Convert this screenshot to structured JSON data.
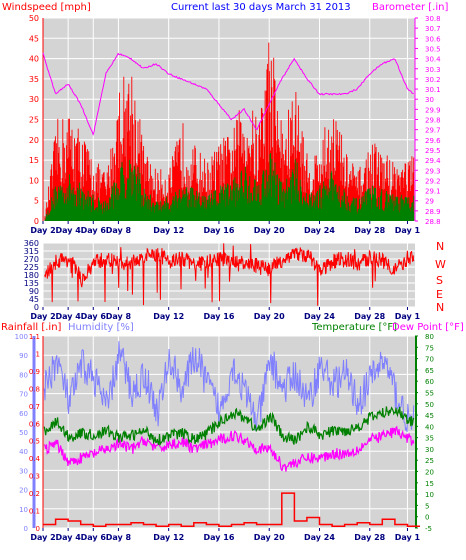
{
  "title": "Current last 30 days March 31 2013",
  "colors": {
    "panel_bg": "#d4d4d4",
    "grid": "#ffffff",
    "wind_speed": "#ff0000",
    "wind_avg": "#008000",
    "barometer": "#ff00ff",
    "wind_dir": "#ff0000",
    "rainfall": "#ff0000",
    "humidity": "#8080ff",
    "temperature": "#008000",
    "dew_point": "#ff00ff",
    "title": "#0000ff",
    "axis_text": "#000080"
  },
  "chart_data": [
    {
      "type": "line",
      "panel": "wind",
      "ylabel_left": "Windspeed [mph]",
      "ylabel_right": "Barometer [.in]",
      "left_ticks": [
        0,
        5,
        10,
        15,
        20,
        25,
        30,
        35,
        40,
        45,
        50
      ],
      "ylim_left": [
        0,
        50
      ],
      "right_ticks": [
        "28.8",
        "28.9",
        "29",
        "29.1",
        "29.2",
        "29.3",
        "29.4",
        "29.5",
        "29.6",
        "29.7",
        "29.8",
        "29.9",
        "30",
        "30.1",
        "30.2",
        "30.3",
        "30.4",
        "30.5",
        "30.6",
        "30.7",
        "30.8"
      ],
      "ylim_right": [
        28.8,
        30.8
      ],
      "x_ticks": [
        "Day 2",
        "Day 4",
        "Day 6",
        "Day 8",
        "Day 12",
        "Day 16",
        "Day 20",
        "Day 24",
        "Day 28",
        "Day 1"
      ],
      "x_tick_days": [
        0,
        2,
        4,
        6,
        10,
        14,
        18,
        22,
        26,
        29
      ],
      "xlim": [
        0,
        29.6
      ],
      "series": [
        {
          "key": "wind_gust",
          "color": "#ff0000",
          "values": [
            0,
            20,
            22,
            18,
            12,
            10,
            28,
            32,
            14,
            10,
            11,
            20,
            15,
            12,
            16,
            18,
            26,
            20,
            40,
            18,
            28,
            12,
            16,
            24,
            14,
            10,
            16,
            14,
            12,
            13
          ]
        },
        {
          "key": "wind_avg",
          "color": "#008000",
          "values": [
            0,
            8,
            9,
            7,
            5,
            4,
            11,
            14,
            6,
            4,
            5,
            8,
            6,
            5,
            7,
            8,
            11,
            8,
            14,
            7,
            12,
            5,
            7,
            10,
            6,
            4,
            7,
            6,
            5,
            5
          ]
        },
        {
          "key": "barometer",
          "color": "#ff00ff",
          "x": [
            0,
            1,
            2,
            3,
            4,
            5,
            6,
            7,
            8,
            9,
            10,
            11,
            12,
            13,
            14,
            15,
            16,
            17,
            18,
            19,
            20,
            21,
            22,
            23,
            24,
            25,
            26,
            27,
            28,
            29,
            29.5
          ],
          "values": [
            30.45,
            30.05,
            30.15,
            29.95,
            29.65,
            30.25,
            30.45,
            30.4,
            30.3,
            30.35,
            30.25,
            30.2,
            30.15,
            30.1,
            29.95,
            29.8,
            29.9,
            29.7,
            29.95,
            30.2,
            30.4,
            30.2,
            30.05,
            30.05,
            30.05,
            30.1,
            30.25,
            30.35,
            30.4,
            30.1,
            30.05
          ]
        }
      ]
    },
    {
      "type": "line",
      "panel": "wind_direction",
      "left_ticks": [
        0,
        45,
        90,
        135,
        180,
        225,
        270,
        315,
        360
      ],
      "ylim": [
        0,
        360
      ],
      "compass_labels": [
        "N",
        "W",
        "S",
        "E",
        "N"
      ],
      "x_ticks": [
        "Day 2",
        "Day 4",
        "Day 6",
        "Day 8",
        "Day 12",
        "Day 16",
        "Day 20",
        "Day 24",
        "Day 28",
        "Day 1"
      ],
      "series": [
        {
          "key": "wind_direction",
          "color": "#ff0000",
          "values": [
            180,
            260,
            270,
            150,
            250,
            270,
            240,
            250,
            280,
            300,
            260,
            270,
            240,
            250,
            270,
            250,
            240,
            230,
            210,
            270,
            300,
            290,
            200,
            260,
            270,
            240,
            280,
            260,
            210,
            280
          ]
        }
      ]
    },
    {
      "type": "line",
      "panel": "temperature_humidity_rain",
      "ylabel_rain": "Rainfall [.in]",
      "ylabel_humidity": "Humidity [%]",
      "ylabel_temp": "Temperature [°F]",
      "ylabel_dew": "Dew Point [°F]",
      "humidity_ticks": [
        0,
        10,
        20,
        30,
        40,
        50,
        60,
        70,
        80,
        90,
        100
      ],
      "ylim_humidity": [
        0,
        100
      ],
      "rain_ticks": [
        "0",
        "0.1",
        "0.2",
        "0.3",
        "0.4",
        "0.5",
        "0.6",
        "0.7",
        "0.8",
        "0.9",
        "1",
        "1.1"
      ],
      "ylim_rain": [
        0,
        1.1
      ],
      "temp_ticks": [
        -5,
        0,
        5,
        10,
        15,
        20,
        25,
        30,
        35,
        40,
        45,
        50,
        55,
        60,
        65,
        70,
        75,
        80
      ],
      "ylim_temp": [
        -5,
        80
      ],
      "x_ticks": [
        "Day 2",
        "Day 4",
        "Day 6",
        "Day 8",
        "Day 12",
        "Day 16",
        "Day 20",
        "Day 24",
        "Day 28",
        "Day 1"
      ],
      "series": [
        {
          "key": "humidity",
          "color": "#8080ff",
          "values": [
            72,
            88,
            65,
            85,
            78,
            62,
            92,
            70,
            80,
            60,
            88,
            72,
            90,
            75,
            60,
            85,
            70,
            55,
            88,
            72,
            80,
            65,
            85,
            75,
            80,
            65,
            78,
            88,
            70,
            55
          ]
        },
        {
          "key": "temperature",
          "color": "#008000",
          "values": [
            38,
            42,
            35,
            37,
            36,
            38,
            35,
            36,
            38,
            34,
            36,
            37,
            34,
            37,
            42,
            46,
            44,
            38,
            45,
            35,
            34,
            40,
            36,
            38,
            38,
            40,
            44,
            46,
            48,
            42
          ]
        },
        {
          "key": "dew_point",
          "color": "#ff00ff",
          "values": [
            30,
            32,
            24,
            26,
            28,
            30,
            32,
            30,
            34,
            30,
            32,
            33,
            30,
            32,
            34,
            36,
            34,
            30,
            30,
            22,
            24,
            26,
            26,
            28,
            28,
            30,
            34,
            36,
            38,
            34
          ]
        },
        {
          "key": "rainfall",
          "color": "#ff0000",
          "values": [
            0.02,
            0.05,
            0.04,
            0.02,
            0.01,
            0.02,
            0.02,
            0.03,
            0.02,
            0.01,
            0.02,
            0.01,
            0.03,
            0.02,
            0.01,
            0.02,
            0.03,
            0.02,
            0.02,
            0.2,
            0.04,
            0.06,
            0.02,
            0.01,
            0.02,
            0.03,
            0.02,
            0.05,
            0.02,
            0.01
          ]
        }
      ]
    }
  ]
}
